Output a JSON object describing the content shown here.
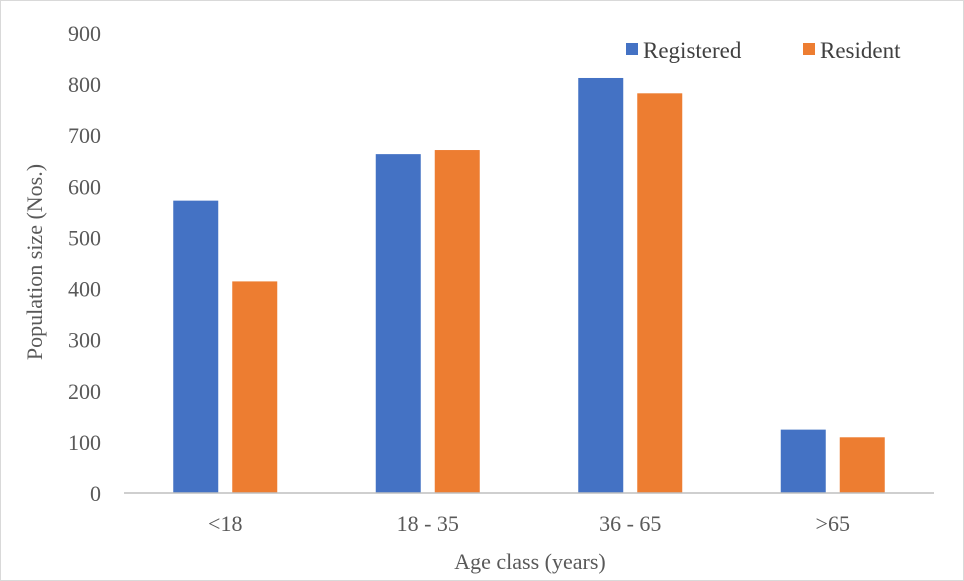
{
  "chart_data": {
    "type": "bar",
    "categories": [
      "<18",
      "18 - 35",
      "36 - 65",
      ">65"
    ],
    "series": [
      {
        "name": "Registered",
        "values": [
          572,
          663,
          812,
          124
        ],
        "color": "#4472c4"
      },
      {
        "name": "Resident",
        "values": [
          414,
          671,
          782,
          109
        ],
        "color": "#ed7d31"
      }
    ],
    "xlabel": "Age class (years)",
    "ylabel": "Population size (Nos.)",
    "ylim": [
      0,
      900
    ],
    "yticks": [
      0,
      100,
      200,
      300,
      400,
      500,
      600,
      700,
      800,
      900
    ],
    "grid": false,
    "legend_position": "top-right"
  }
}
